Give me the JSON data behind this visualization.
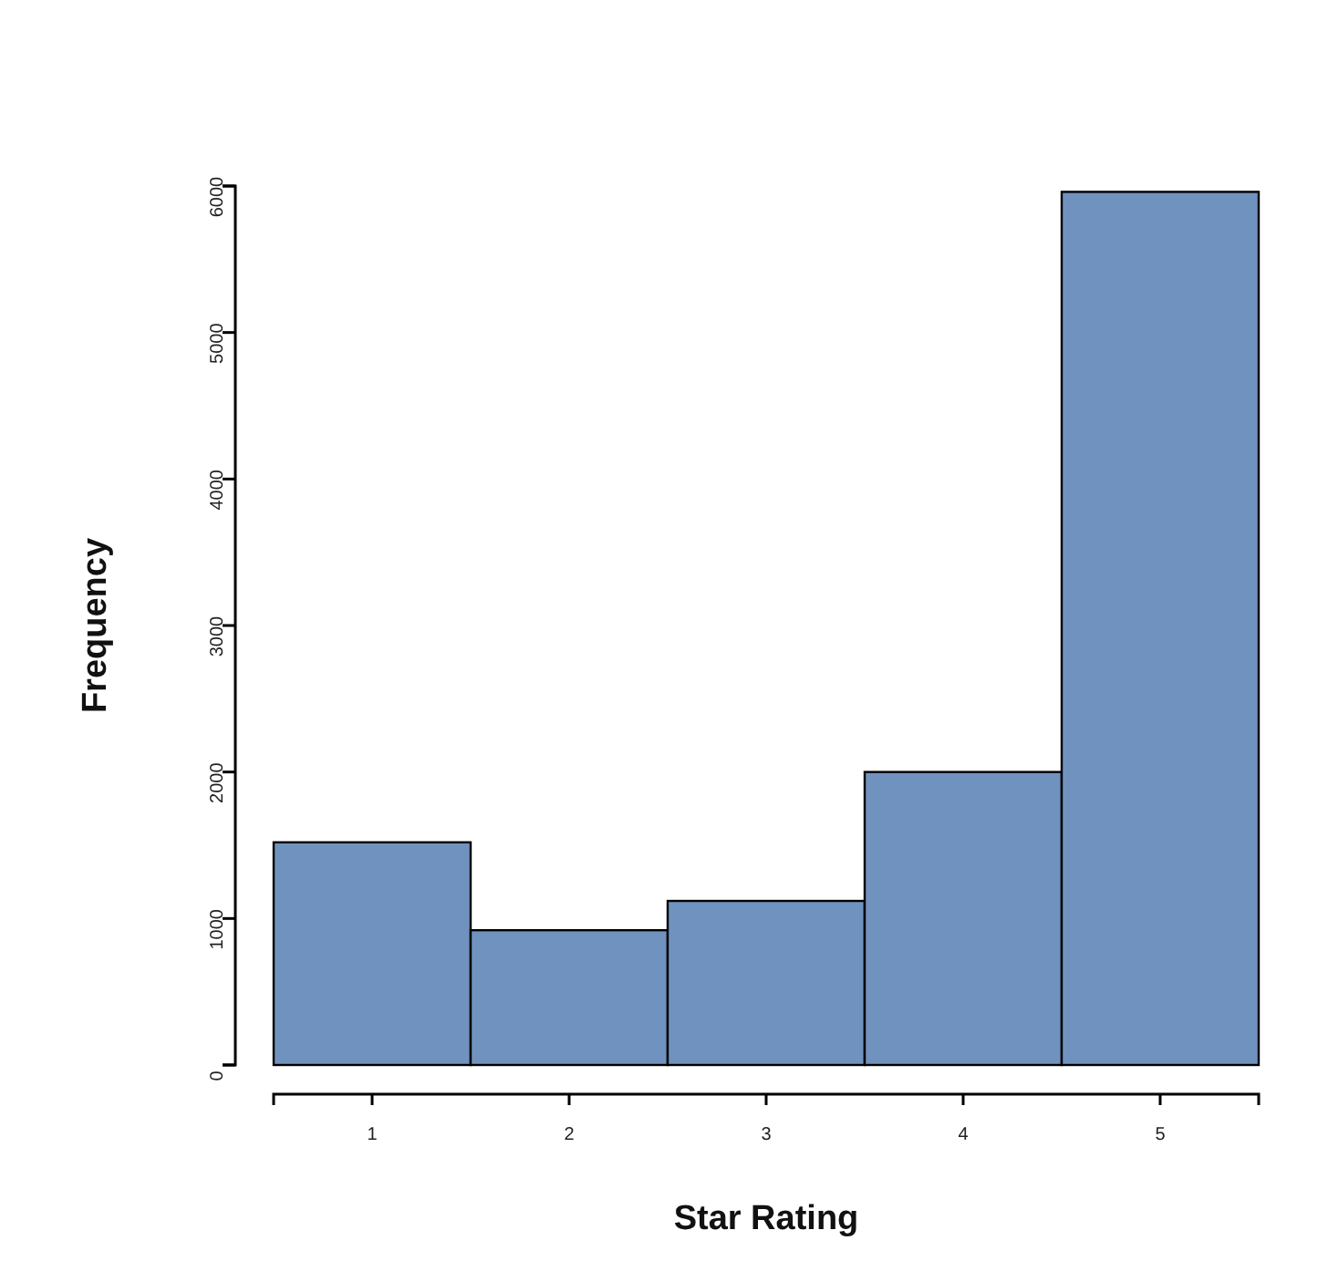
{
  "chart_data": {
    "type": "histogram",
    "xlabel": "Star Rating",
    "ylabel": "Frequency",
    "bins": [
      0.5,
      1.5,
      2.5,
      3.5,
      4.5,
      5.5
    ],
    "values": [
      1520,
      920,
      1120,
      2000,
      5960
    ],
    "color": "#7092be",
    "xlim": [
      0.5,
      5.5
    ],
    "xticks": [
      1,
      2,
      3,
      4,
      5
    ],
    "ylim": [
      0,
      6000
    ],
    "yticks": [
      0,
      1000,
      2000,
      3000,
      4000,
      5000,
      6000
    ],
    "grid": false
  }
}
